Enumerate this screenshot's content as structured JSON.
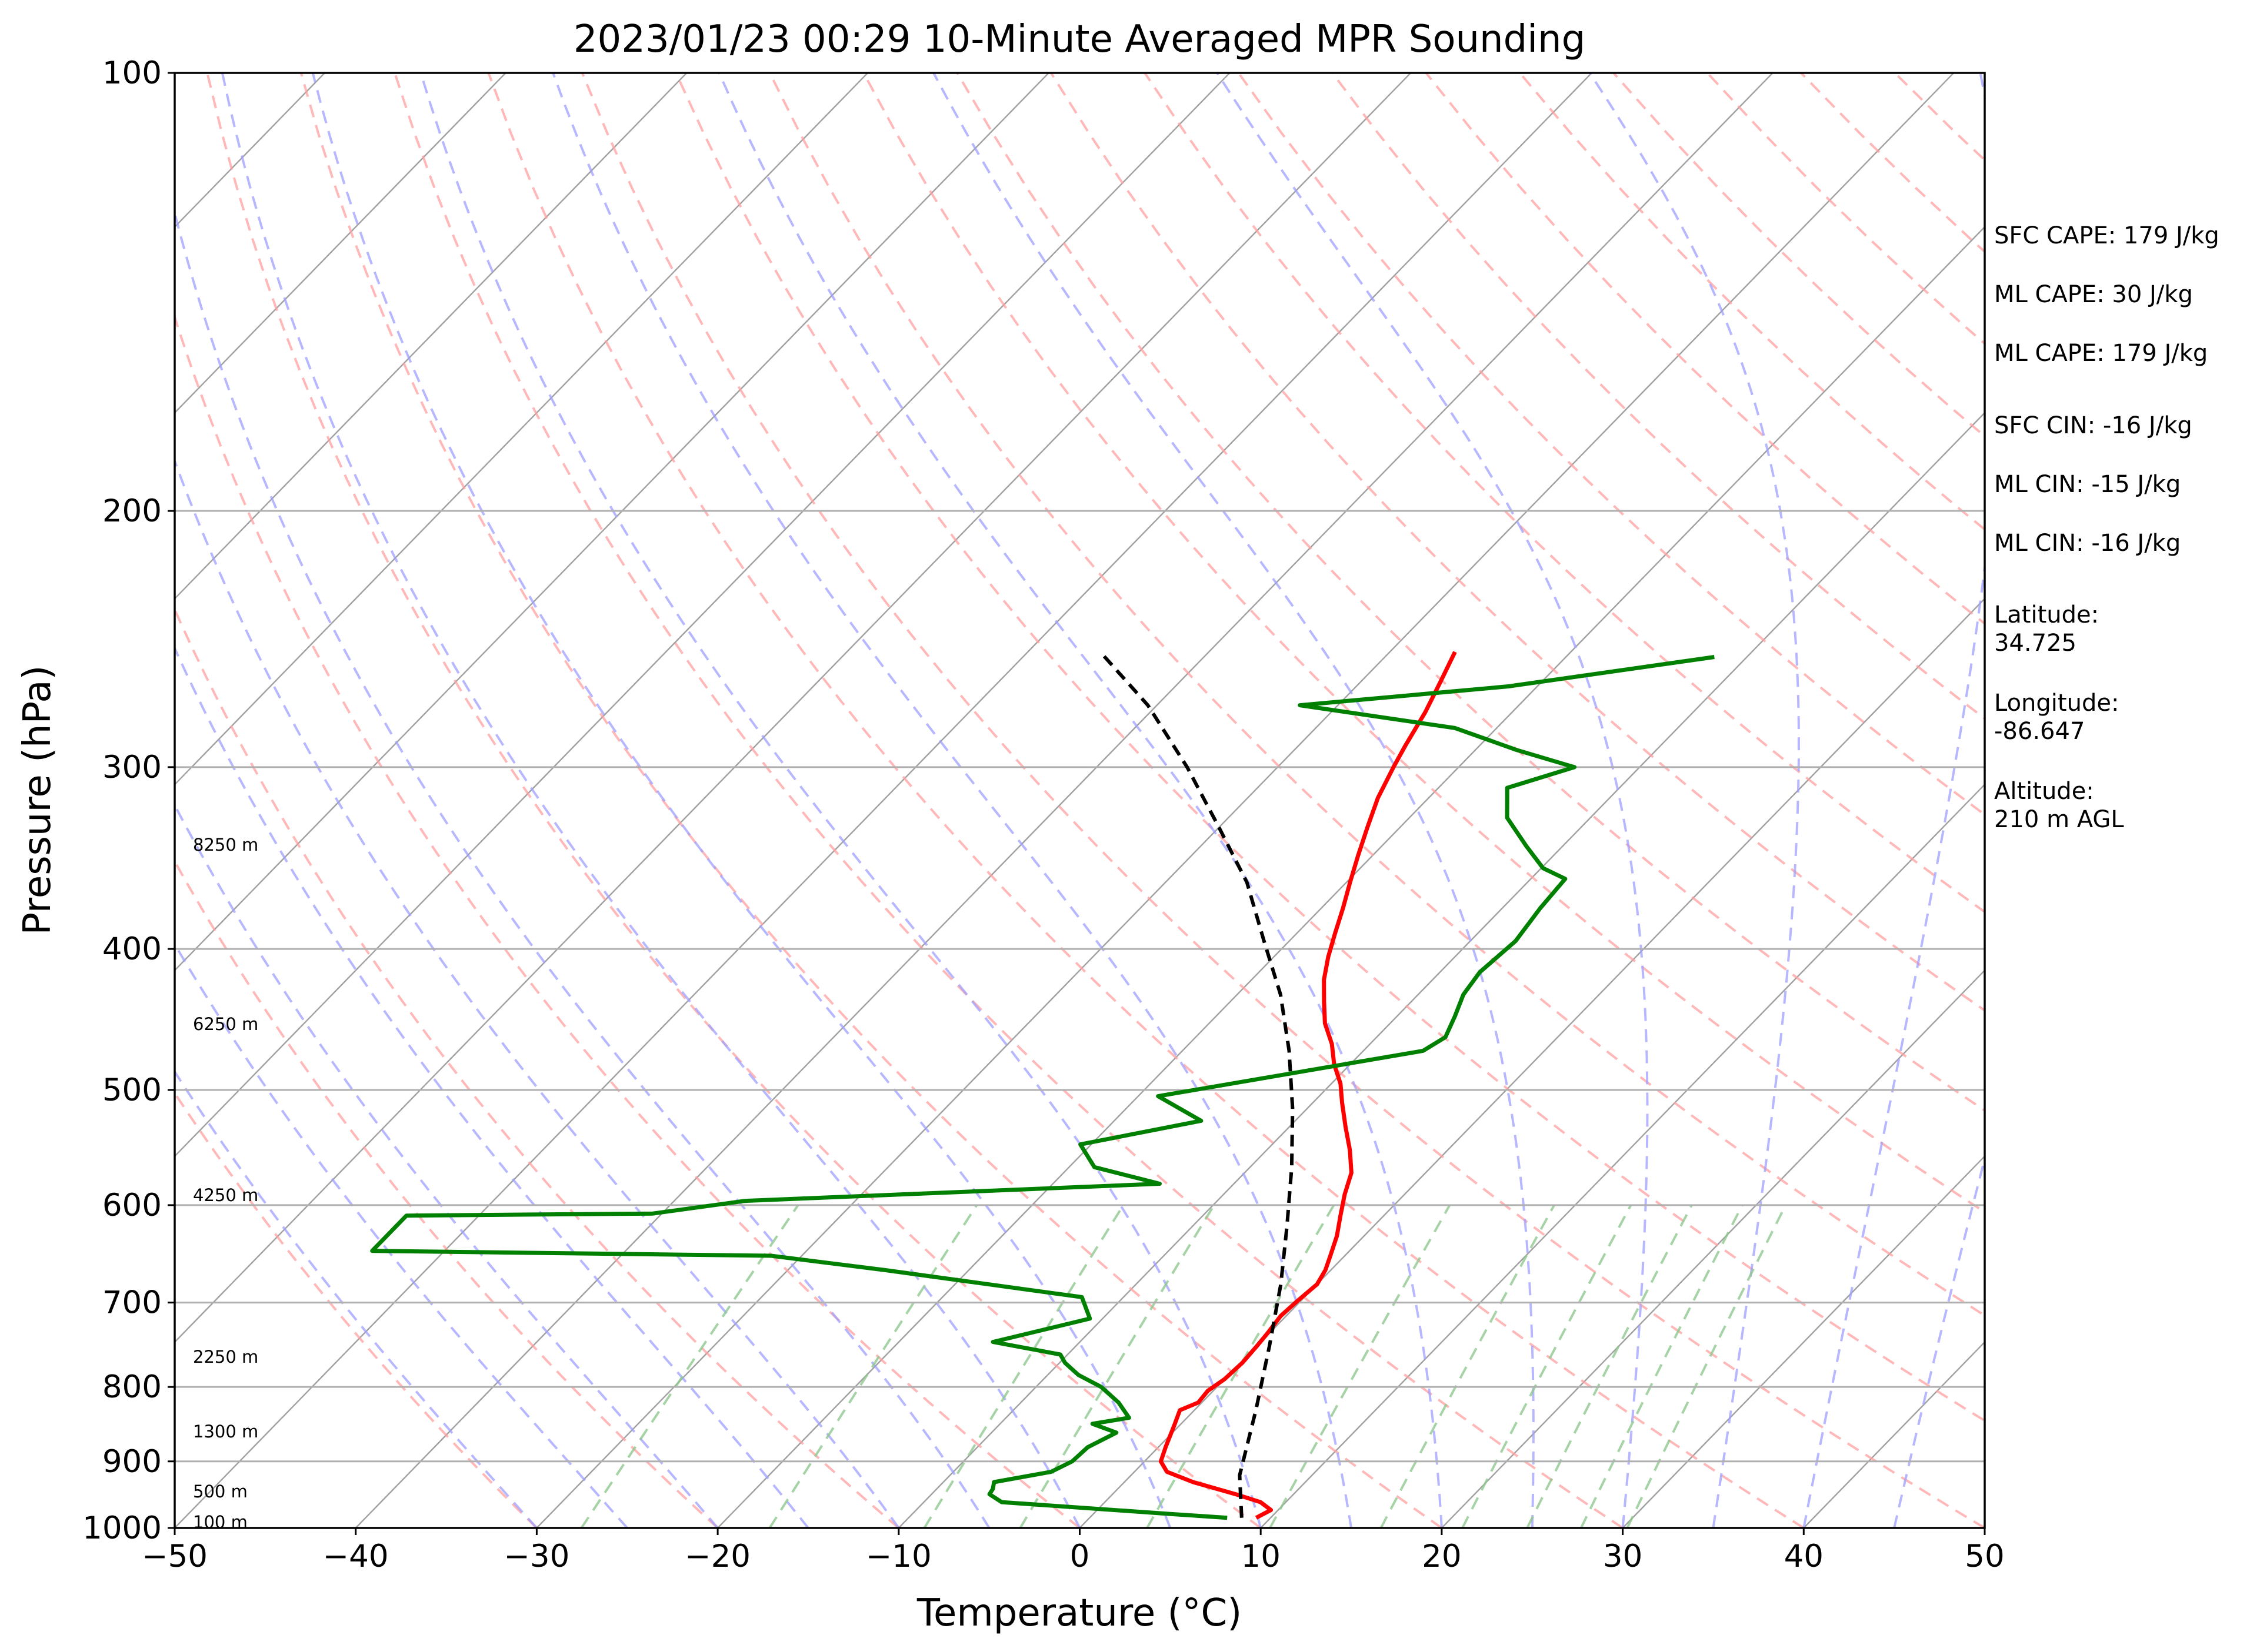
{
  "chart_data": {
    "type": "line",
    "title": "2023/01/23 00:29 10-Minute Averaged MPR Sounding",
    "xlabel": "Temperature (°C)",
    "ylabel": "Pressure (hPa)",
    "xlim": [
      -50,
      50
    ],
    "ylim": [
      1000,
      100
    ],
    "y_scale": "log",
    "skew": "skew-T log-p",
    "grid": true,
    "x_ticks": [
      "−50",
      "−40",
      "−30",
      "−20",
      "−10",
      "0",
      "10",
      "20",
      "30",
      "40",
      "50"
    ],
    "y_ticks": [
      "100",
      "200",
      "300",
      "400",
      "500",
      "600",
      "700",
      "800",
      "900",
      "1000"
    ],
    "series": [
      {
        "color": "#ff0000",
        "points": [
          [
            9.2,
            984
          ],
          [
            9.6,
            972
          ],
          [
            8.6,
            960
          ],
          [
            6.8,
            948
          ],
          [
            3.8,
            930
          ],
          [
            1.8,
            915
          ],
          [
            0.9,
            900
          ],
          [
            0.4,
            880
          ],
          [
            -0.3,
            850
          ],
          [
            -0.8,
            830
          ],
          [
            -0.2,
            820
          ],
          [
            -0.3,
            805
          ],
          [
            0.0,
            790
          ],
          [
            0.1,
            770
          ],
          [
            0.0,
            750
          ],
          [
            -0.1,
            735
          ],
          [
            -0.3,
            715
          ],
          [
            -0.2,
            700
          ],
          [
            0.0,
            680
          ],
          [
            -0.3,
            665
          ],
          [
            -0.8,
            650
          ],
          [
            -1.5,
            630
          ],
          [
            -2.4,
            610
          ],
          [
            -3.3,
            590
          ],
          [
            -4.1,
            570
          ],
          [
            -5.4,
            550
          ],
          [
            -6.9,
            530
          ],
          [
            -8.4,
            510
          ],
          [
            -9.5,
            495
          ],
          [
            -10.9,
            480
          ],
          [
            -12.1,
            465
          ],
          [
            -13.6,
            450
          ],
          [
            -14.8,
            435
          ],
          [
            -16.0,
            420
          ],
          [
            -17.0,
            405
          ],
          [
            -17.9,
            390
          ],
          [
            -18.8,
            375
          ],
          [
            -19.8,
            360
          ],
          [
            -20.8,
            345
          ],
          [
            -21.8,
            330
          ],
          [
            -22.8,
            315
          ],
          [
            -23.6,
            300
          ],
          [
            -24.1,
            290
          ],
          [
            -24.8,
            275
          ],
          [
            -25.6,
            262
          ],
          [
            -26.4,
            250
          ]
        ]
      },
      {
        "color": "#008000",
        "points": [
          [
            7.6,
            984
          ],
          [
            4.2,
            978
          ],
          [
            -5.7,
            960
          ],
          [
            -6.8,
            948
          ],
          [
            -6.9,
            940
          ],
          [
            -7.2,
            930
          ],
          [
            -4.6,
            915
          ],
          [
            -4.0,
            900
          ],
          [
            -3.9,
            880
          ],
          [
            -3.1,
            860
          ],
          [
            -4.9,
            848
          ],
          [
            -3.2,
            840
          ],
          [
            -4.6,
            820
          ],
          [
            -6.4,
            800
          ],
          [
            -8.3,
            785
          ],
          [
            -9.7,
            770
          ],
          [
            -10.4,
            760
          ],
          [
            -14.8,
            745
          ],
          [
            -10.7,
            718
          ],
          [
            -12.3,
            694
          ],
          [
            -24.6,
            665
          ],
          [
            -31.7,
            650
          ],
          [
            -54.0,
            645
          ],
          [
            -54.0,
            610
          ],
          [
            -40.5,
            608
          ],
          [
            -36.1,
            596
          ],
          [
            -14.1,
            580
          ],
          [
            -18.6,
            565
          ],
          [
            -20.6,
            545
          ],
          [
            -15.2,
            525
          ],
          [
            -18.9,
            505
          ],
          [
            -6.7,
            470
          ],
          [
            -6.2,
            460
          ],
          [
            -6.8,
            445
          ],
          [
            -7.5,
            430
          ],
          [
            -7.8,
            415
          ],
          [
            -7.5,
            395
          ],
          [
            -7.9,
            375
          ],
          [
            -8.1,
            358
          ],
          [
            -9.9,
            352
          ],
          [
            -12.0,
            340
          ],
          [
            -14.6,
            325
          ],
          [
            -16.2,
            310
          ],
          [
            -13.6,
            300
          ],
          [
            -17.7,
            292
          ],
          [
            -22.3,
            282
          ],
          [
            -32.1,
            272
          ],
          [
            -21.6,
            264
          ],
          [
            -11.8,
            252
          ]
        ]
      },
      {
        "color": "#000000",
        "points": [
          [
            8.4,
            984
          ],
          [
            6.0,
            920
          ],
          [
            3.4,
            830
          ],
          [
            0.7,
            750
          ],
          [
            -2.0,
            680
          ],
          [
            -4.8,
            620
          ],
          [
            -7.7,
            565
          ],
          [
            -10.8,
            515
          ],
          [
            -14.1,
            470
          ],
          [
            -17.6,
            430
          ],
          [
            -21.4,
            395
          ],
          [
            -25.5,
            360
          ],
          [
            -30.0,
            330
          ],
          [
            -35.0,
            300
          ],
          [
            -40.5,
            272
          ],
          [
            -46.0,
            250
          ]
        ]
      }
    ]
  },
  "height_labels": [
    "8250 m",
    "6250 m",
    "4250 m",
    "2250 m",
    "1300 m",
    "500 m",
    "100 m"
  ],
  "stats": {
    "sfc_cape": "SFC CAPE: 179 J/kg",
    "ml_cape_1": "ML CAPE: 30 J/kg",
    "ml_cape_2": "ML CAPE: 179 J/kg",
    "sfc_cin": "SFC CIN: -16 J/kg",
    "ml_cin_1": "ML CIN: -15 J/kg",
    "ml_cin_2": "ML CIN: -16 J/kg",
    "latitude_label": "Latitude:",
    "latitude_value": "34.725",
    "longitude_label": "Longitude:",
    "longitude_value": "-86.647",
    "altitude_label": "Altitude:",
    "altitude_value": "210 m AGL"
  },
  "colors": {
    "isotherm": "#a0a0a0",
    "dry_adiabat": "#ff9f9f",
    "moist_adiabat": "#9f9fff",
    "mixing_ratio": "#90c890"
  }
}
